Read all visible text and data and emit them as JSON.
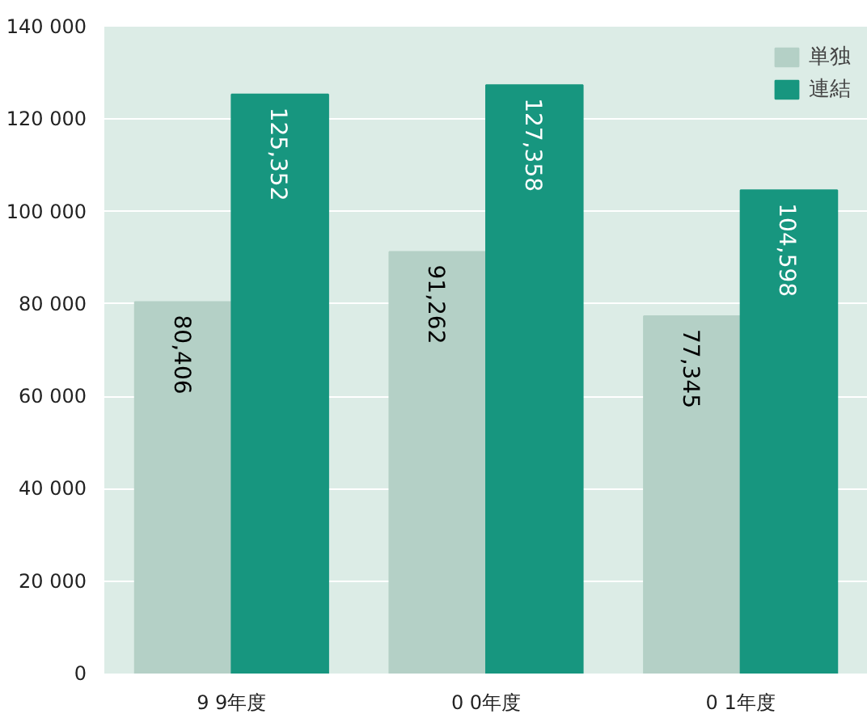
{
  "chart_data": {
    "type": "bar",
    "categories": [
      "9 9年度",
      "0 0年度",
      "0 1年度"
    ],
    "series": [
      {
        "name": "単独",
        "color": "#b4d0c6",
        "values": [
          80406,
          91262,
          77345
        ]
      },
      {
        "name": "連結",
        "color": "#17967f",
        "values": [
          125352,
          127358,
          104598
        ]
      }
    ],
    "ylim": [
      0,
      140000
    ],
    "yticks": [
      0,
      {
        "value": 20000,
        "label": "20 000"
      },
      {
        "value": 40000,
        "label": "40 000"
      },
      {
        "value": 60000,
        "label": "60 000"
      },
      {
        "value": 80000,
        "label": "80 000"
      },
      {
        "value": 100000,
        "label": "100 000"
      },
      {
        "value": 120000,
        "label": "120 000"
      },
      {
        "value": 140000,
        "label": "140 000"
      }
    ],
    "value_labels": [
      [
        "80,406",
        "91,262",
        "77,345"
      ],
      [
        "125,352",
        "127,358",
        "104,598"
      ]
    ],
    "grid": "y",
    "legend": "top right"
  }
}
